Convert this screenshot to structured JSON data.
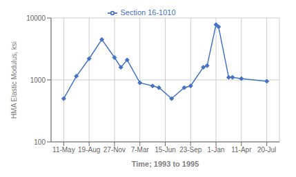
{
  "chart_data": {
    "type": "line",
    "log": "y",
    "grid": true,
    "legend": "top",
    "xlabel": "Time; 1993 to 1995",
    "ylabel": "HMA Elastic Modulus, ksi",
    "x": [
      0.0,
      0.5,
      1.0,
      1.5,
      2.0,
      2.25,
      2.5,
      3.0,
      3.5,
      3.75,
      4.25,
      4.75,
      5.0,
      5.5,
      5.65,
      6.0,
      6.1,
      6.5,
      6.65,
      7.0,
      8.0
    ],
    "series": [
      {
        "name": "Section 16-1010",
        "color": "#4472C4",
        "marker": "diamond",
        "values": [
          500,
          1150,
          2200,
          4500,
          2300,
          1600,
          2100,
          900,
          800,
          750,
          500,
          750,
          800,
          1600,
          1700,
          7800,
          7200,
          1100,
          1100,
          1050,
          950
        ]
      }
    ],
    "xlim": [
      -0.5,
      8.5
    ],
    "xticks": [
      {
        "value": 0,
        "label": "11-May"
      },
      {
        "value": 1,
        "label": "19-Aug"
      },
      {
        "value": 2,
        "label": "27-Nov"
      },
      {
        "value": 3,
        "label": "7-Mar"
      },
      {
        "value": 4,
        "label": "15-Jun"
      },
      {
        "value": 5,
        "label": "23-Sep"
      },
      {
        "value": 6,
        "label": "1-Jan"
      },
      {
        "value": 7,
        "label": "11-Apr"
      },
      {
        "value": 8,
        "label": "20-Jul"
      }
    ],
    "ylim": [
      100,
      10000
    ],
    "yticks": [
      100,
      1000,
      10000
    ]
  }
}
